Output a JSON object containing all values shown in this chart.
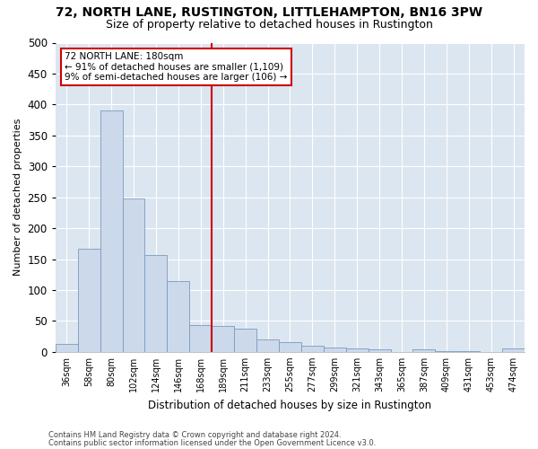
{
  "title": "72, NORTH LANE, RUSTINGTON, LITTLEHAMPTON, BN16 3PW",
  "subtitle": "Size of property relative to detached houses in Rustington",
  "xlabel": "Distribution of detached houses by size in Rustington",
  "ylabel": "Number of detached properties",
  "bar_color": "#ccd9ea",
  "bar_edge_color": "#7a9abf",
  "background_color": "#dce6f0",
  "fig_background_color": "#ffffff",
  "categories": [
    "36sqm",
    "58sqm",
    "80sqm",
    "102sqm",
    "124sqm",
    "146sqm",
    "168sqm",
    "189sqm",
    "211sqm",
    "233sqm",
    "255sqm",
    "277sqm",
    "299sqm",
    "321sqm",
    "343sqm",
    "365sqm",
    "387sqm",
    "409sqm",
    "431sqm",
    "453sqm",
    "474sqm"
  ],
  "values": [
    13,
    167,
    390,
    248,
    157,
    115,
    43,
    42,
    38,
    20,
    16,
    10,
    7,
    5,
    4,
    0,
    4,
    1,
    1,
    0,
    6
  ],
  "ylim": [
    0,
    500
  ],
  "yticks": [
    0,
    50,
    100,
    150,
    200,
    250,
    300,
    350,
    400,
    450,
    500
  ],
  "vline_x": 6.5,
  "vline_color": "#cc0000",
  "annotation_title": "72 NORTH LANE: 180sqm",
  "annotation_line1": "← 91% of detached houses are smaller (1,109)",
  "annotation_line2": "9% of semi-detached houses are larger (106) →",
  "annotation_box_color": "#ffffff",
  "annotation_box_edge_color": "#cc0000",
  "footer_line1": "Contains HM Land Registry data © Crown copyright and database right 2024.",
  "footer_line2": "Contains public sector information licensed under the Open Government Licence v3.0."
}
